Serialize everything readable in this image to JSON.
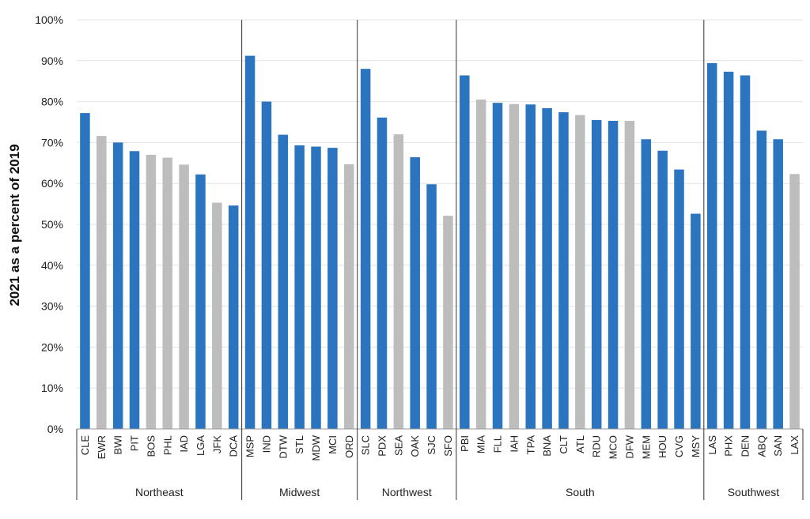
{
  "chart_data": {
    "type": "bar",
    "ylabel": "2021 as a percent of 2019",
    "xlabel": "",
    "ylim": [
      0,
      100
    ],
    "y_ticks": [
      "0%",
      "10%",
      "20%",
      "30%",
      "40%",
      "50%",
      "60%",
      "70%",
      "80%",
      "90%",
      "100%"
    ],
    "grid": true,
    "colors": {
      "blue": "#2b74bf",
      "gray": "#bdbdbd"
    },
    "groups": [
      {
        "name": "Northeast",
        "categories": [
          "CLE",
          "EWR",
          "BWI",
          "PIT",
          "BOS",
          "PHL",
          "IAD",
          "LGA",
          "JFK",
          "DCA"
        ]
      },
      {
        "name": "Midwest",
        "categories": [
          "MSP",
          "IND",
          "DTW",
          "STL",
          "MDW",
          "MCI",
          "ORD"
        ]
      },
      {
        "name": "Northwest",
        "categories": [
          "SLC",
          "PDX",
          "SEA",
          "OAK",
          "SJC",
          "SFO"
        ]
      },
      {
        "name": "South",
        "categories": [
          "PBI",
          "MIA",
          "FLL",
          "IAH",
          "TPA",
          "BNA",
          "CLT",
          "ATL",
          "RDU",
          "MCO",
          "DFW",
          "MEM",
          "HOU",
          "CVG",
          "MSY"
        ]
      },
      {
        "name": "Southwest",
        "categories": [
          "LAS",
          "PHX",
          "DEN",
          "ABQ",
          "SAN",
          "LAX"
        ]
      }
    ],
    "categories": [
      "CLE",
      "EWR",
      "BWI",
      "PIT",
      "BOS",
      "PHL",
      "IAD",
      "LGA",
      "JFK",
      "DCA",
      "MSP",
      "IND",
      "DTW",
      "STL",
      "MDW",
      "MCI",
      "ORD",
      "SLC",
      "PDX",
      "SEA",
      "OAK",
      "SJC",
      "SFO",
      "PBI",
      "MIA",
      "FLL",
      "IAH",
      "TPA",
      "BNA",
      "CLT",
      "ATL",
      "RDU",
      "MCO",
      "DFW",
      "MEM",
      "HOU",
      "CVG",
      "MSY",
      "LAS",
      "PHX",
      "DEN",
      "ABQ",
      "SAN",
      "LAX"
    ],
    "values": [
      77.2,
      71.6,
      70.0,
      67.9,
      67.0,
      66.3,
      64.6,
      62.2,
      55.3,
      54.6,
      91.2,
      80.0,
      71.9,
      69.3,
      69.0,
      68.7,
      64.7,
      88.0,
      76.1,
      72.0,
      66.4,
      59.8,
      52.1,
      86.4,
      80.5,
      79.7,
      79.4,
      79.3,
      78.4,
      77.4,
      76.7,
      75.5,
      75.3,
      75.3,
      70.8,
      68.0,
      63.4,
      52.6,
      89.4,
      87.3,
      86.4,
      72.9,
      70.8,
      62.3
    ],
    "bar_colors": [
      "blue",
      "gray",
      "blue",
      "blue",
      "gray",
      "gray",
      "gray",
      "blue",
      "gray",
      "blue",
      "blue",
      "blue",
      "blue",
      "blue",
      "blue",
      "blue",
      "gray",
      "blue",
      "blue",
      "gray",
      "blue",
      "blue",
      "gray",
      "blue",
      "gray",
      "blue",
      "gray",
      "blue",
      "blue",
      "blue",
      "gray",
      "blue",
      "blue",
      "gray",
      "blue",
      "blue",
      "blue",
      "blue",
      "blue",
      "blue",
      "blue",
      "blue",
      "blue",
      "gray"
    ]
  }
}
